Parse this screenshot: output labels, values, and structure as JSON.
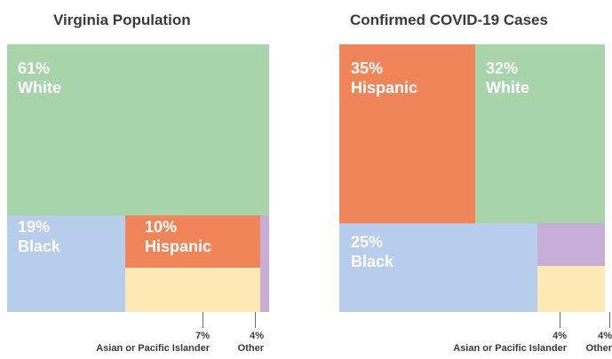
{
  "chart_data": [
    {
      "type": "treemap",
      "title": "Virginia Population",
      "segments": [
        {
          "name": "White",
          "pct_label": "61%",
          "value": 61,
          "color": "#a8d4a9"
        },
        {
          "name": "Black",
          "pct_label": "19%",
          "value": 19,
          "color": "#b7cdec"
        },
        {
          "name": "Hispanic",
          "pct_label": "10%",
          "value": 10,
          "color": "#f0855a"
        },
        {
          "name": "Asian or Pacific Islander",
          "pct_label": "7%",
          "value": 7,
          "color": "#fde8b4"
        },
        {
          "name": "Other",
          "pct_label": "4%",
          "value": 4,
          "color": "#c6aed6"
        }
      ]
    },
    {
      "type": "treemap",
      "title": "Confirmed COVID-19 Cases",
      "segments": [
        {
          "name": "Hispanic",
          "pct_label": "35%",
          "value": 35,
          "color": "#f0855a"
        },
        {
          "name": "White",
          "pct_label": "32%",
          "value": 32,
          "color": "#a8d4a9"
        },
        {
          "name": "Black",
          "pct_label": "25%",
          "value": 25,
          "color": "#b7cdec"
        },
        {
          "name": "Asian or Pacific Islander",
          "pct_label": "4%",
          "value": 4,
          "color": "#fde8b4"
        },
        {
          "name": "Other",
          "pct_label": "4%",
          "value": 4,
          "color": "#c6aed6"
        }
      ]
    }
  ]
}
